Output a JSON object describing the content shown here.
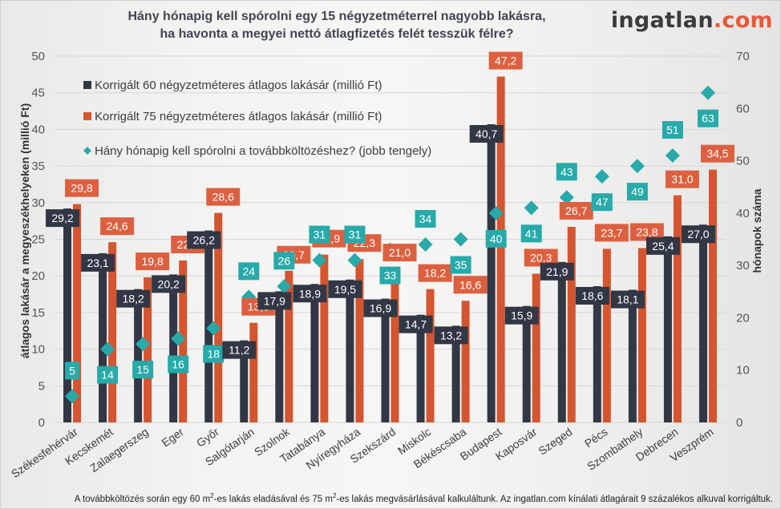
{
  "header": {
    "title_line1": "Hány hónapig kell spórolni egy 15 négyzetméterrel nagyobb lakásra,",
    "title_line2": "ha havonta a megyei nettó átlagfizetés felét tesszük félre?",
    "logo_main": "ingatlan",
    "logo_dot": ".",
    "logo_tld": "com"
  },
  "footnote": {
    "part1": "A továbbköltözés során egy 60 m",
    "sup1": "2",
    "part2": "-es lakás eladásával és 75 m",
    "sup2": "2",
    "part3": "-es lakás megvásárlásával kalkuláltunk. Az ingatlan.com kínálati átlagárait 9 százalékos alkuval korrigáltuk."
  },
  "colors": {
    "series60": "#313744",
    "series75": "#d4552f",
    "months": "#27aaa9",
    "label75": "#dc6040",
    "grid": "#d6d6d6"
  },
  "chart_data": {
    "type": "bar",
    "title": "Hány hónapig kell spórolni egy 15 négyzetméterrel nagyobb lakásra, ha havonta a megyei nettó átlagfizetés felét tesszük félre?",
    "ylabel": "átlagos lakásár a megyeszékhelyeken (millió Ft)",
    "y2label": "hónapok száma",
    "ylim": [
      0,
      50
    ],
    "y2lim": [
      0,
      70
    ],
    "yticks": [
      "0",
      "5",
      "10",
      "15",
      "20",
      "25",
      "30",
      "35",
      "40",
      "45",
      "50"
    ],
    "y2ticks": [
      "0",
      "10",
      "20",
      "30",
      "40",
      "50",
      "60",
      "70"
    ],
    "grid": true,
    "legend_position": "top-left",
    "categories": [
      "Székesfehérvár",
      "Kecskemét",
      "Zalaegerszeg",
      "Eger",
      "Győr",
      "Salgótarján",
      "Szolnok",
      "Tatabánya",
      "Nyíregyháza",
      "Szekszárd",
      "Miskolc",
      "Békéscsaba",
      "Budapest",
      "Kaposvár",
      "Szeged",
      "Pécs",
      "Szombathely",
      "Debrecen",
      "Veszprém"
    ],
    "series": [
      {
        "name": "Korrigált 60 négyzetméteres átlagos lakásár (millió Ft)",
        "type": "bar",
        "axis": "left",
        "values": [
          29.2,
          23.1,
          18.2,
          20.2,
          26.2,
          11.2,
          17.9,
          18.9,
          19.5,
          16.9,
          14.7,
          13.2,
          40.7,
          15.9,
          21.9,
          18.6,
          18.1,
          25.4,
          27.0
        ],
        "labels": [
          "29,2",
          "23,1",
          "18,2",
          "20,2",
          "26,2",
          "11,2",
          "17,9",
          "18,9",
          "19,5",
          "16,9",
          "14,7",
          "13,2",
          "40,7",
          "15,9",
          "21,9",
          "18,6",
          "18,1",
          "25,4",
          "27,0"
        ]
      },
      {
        "name": "Korrigált 75 négyzetméteres átlagos lakásár (millió Ft)",
        "type": "bar",
        "axis": "left",
        "values": [
          29.8,
          24.6,
          19.8,
          22.1,
          28.6,
          13.6,
          20.7,
          22.9,
          22.3,
          21.0,
          18.2,
          16.6,
          47.2,
          20.3,
          26.7,
          23.7,
          23.8,
          31.0,
          34.5
        ],
        "labels": [
          "29,8",
          "24,6",
          "19,8",
          "22,1",
          "28,6",
          "13,6",
          "20,7",
          "22,9",
          "22,3",
          "21,0",
          "18,2",
          "16,6",
          "47,2",
          "20,3",
          "26,7",
          "23,7",
          "23,8",
          "31,0",
          "34,5"
        ]
      },
      {
        "name": "Hány hónapig kell spórolni a továbbköltözéshez? (jobb tengely)",
        "type": "scatter",
        "axis": "right",
        "values": [
          5,
          14,
          15,
          16,
          18,
          24,
          26,
          31,
          31,
          33,
          34,
          35,
          40,
          41,
          43,
          47,
          49,
          51,
          63
        ],
        "labels": [
          "5",
          "14",
          "15",
          "16",
          "18",
          "24",
          "26",
          "31",
          "31",
          "33",
          "34",
          "35",
          "40",
          "41",
          "43",
          "47",
          "49",
          "51",
          "63"
        ],
        "label_position": [
          "above",
          "below",
          "below",
          "below",
          "below",
          "above",
          "above",
          "above",
          "above",
          "below",
          "above",
          "below",
          "below",
          "below",
          "above",
          "below",
          "below",
          "above",
          "below"
        ]
      }
    ]
  }
}
